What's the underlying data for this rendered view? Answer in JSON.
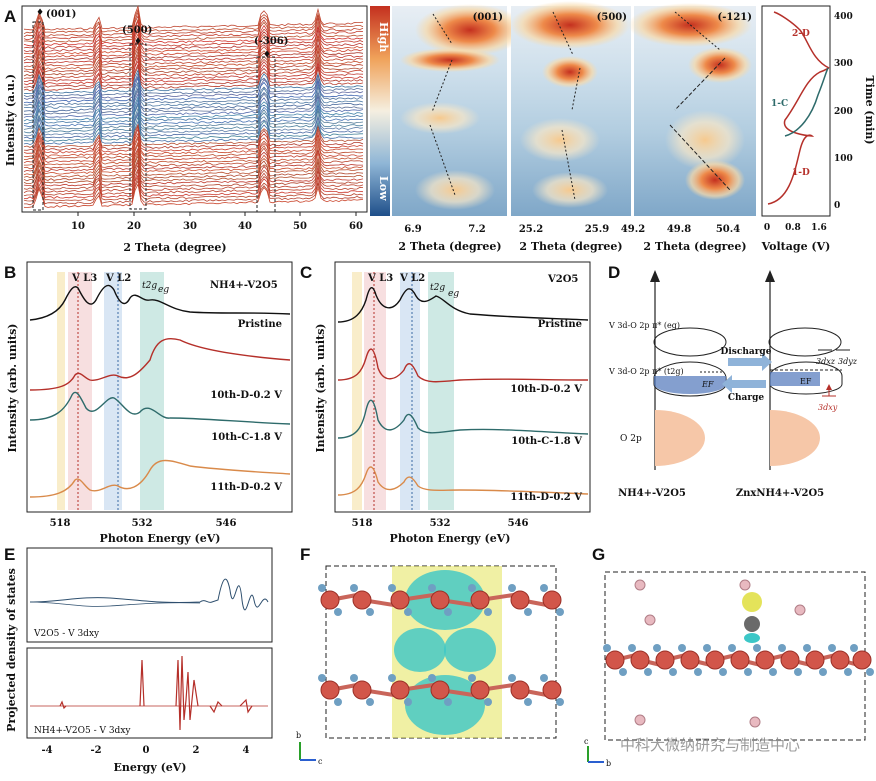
{
  "panels": {
    "A": {
      "label": "A",
      "ylabel": "Intensity (a.u.)",
      "xlabel": "2 Theta (degree)",
      "xticks": [
        "10",
        "20",
        "30",
        "40",
        "50",
        "60"
      ],
      "peaks": [
        "(001)",
        "(500)",
        "(-306)"
      ],
      "marker": "♦",
      "heatmaps": [
        {
          "title": "(001)",
          "ticks": [
            "6.9",
            "7.2"
          ]
        },
        {
          "title": "(500)",
          "ticks": [
            "25.2",
            "25.9"
          ]
        },
        {
          "title": "(-121)",
          "ticks": [
            "49.2",
            "49.8",
            "50.4"
          ]
        }
      ],
      "heat_xlabel": "2 Theta (degree)",
      "colorbar": {
        "high": "High",
        "low": "Low"
      },
      "voltage": {
        "xlabel": "Voltage (V)",
        "ylabel": "Time (min)",
        "xticks": [
          "0",
          "0.8",
          "1.6"
        ],
        "yticks": [
          "0",
          "100",
          "200",
          "300",
          "400"
        ],
        "segments": [
          "2-D",
          "1-C",
          "1-D"
        ]
      }
    },
    "B": {
      "label": "B",
      "title": "NH4+-V2O5",
      "peaks": {
        "l3": "V L3",
        "l2": "V L2",
        "t2g": "t2g",
        "eg": "eg"
      },
      "curves": [
        "Pristine",
        "10th-D-0.2 V",
        "10th-C-1.8 V",
        "11th-D-0.2 V"
      ],
      "xticks": [
        "518",
        "532",
        "546"
      ],
      "xlabel": "Photon Energy (eV)",
      "ylabel": "Intensity (arb. units)"
    },
    "C": {
      "label": "C",
      "title": "V2O5",
      "peaks": {
        "l3": "V L3",
        "l2": "V L2",
        "t2g": "t2g",
        "eg": "eg"
      },
      "curves": [
        "Pristine",
        "10th-D-0.2 V",
        "10th-C-1.8 V",
        "11th-D-0.2 V"
      ],
      "xticks": [
        "518",
        "532",
        "546"
      ],
      "xlabel": "Photon Energy (eV)",
      "ylabel": "Intensity (arb. units)"
    },
    "D": {
      "label": "D",
      "levels": [
        "V 3d-O 2p π* (eg)",
        "V 3d-O 2p π* (t2g)",
        "O 2p"
      ],
      "discharge": "Discharge",
      "charge": "Charge",
      "ef": "EF",
      "orbitals": [
        "3dxz",
        "3dyz",
        "3dxy"
      ],
      "left_caption": "NH4+-V2O5",
      "right_caption": "ZnxNH4+-V2O5"
    },
    "E": {
      "label": "E",
      "ylabel": "Projected density of states",
      "xlabel": "Energy (eV)",
      "xticks": [
        "-4",
        "-2",
        "0",
        "2",
        "4"
      ],
      "legend_top": "V2O5 - V 3dxy",
      "legend_bottom": "NH4+-V2O5 - V 3dxy"
    },
    "F": {
      "label": "F",
      "axes": {
        "b": "b",
        "c": "c"
      }
    },
    "G": {
      "label": "G",
      "axes": {
        "c": "c",
        "b": "b"
      }
    }
  },
  "watermark": "中科大微纳研究与制造中心",
  "colors": {
    "red": "#b5302a",
    "blue": "#3b6aa5",
    "teal": "#2e6b6b",
    "orange": "#d98a4a",
    "dark": "#111111"
  }
}
